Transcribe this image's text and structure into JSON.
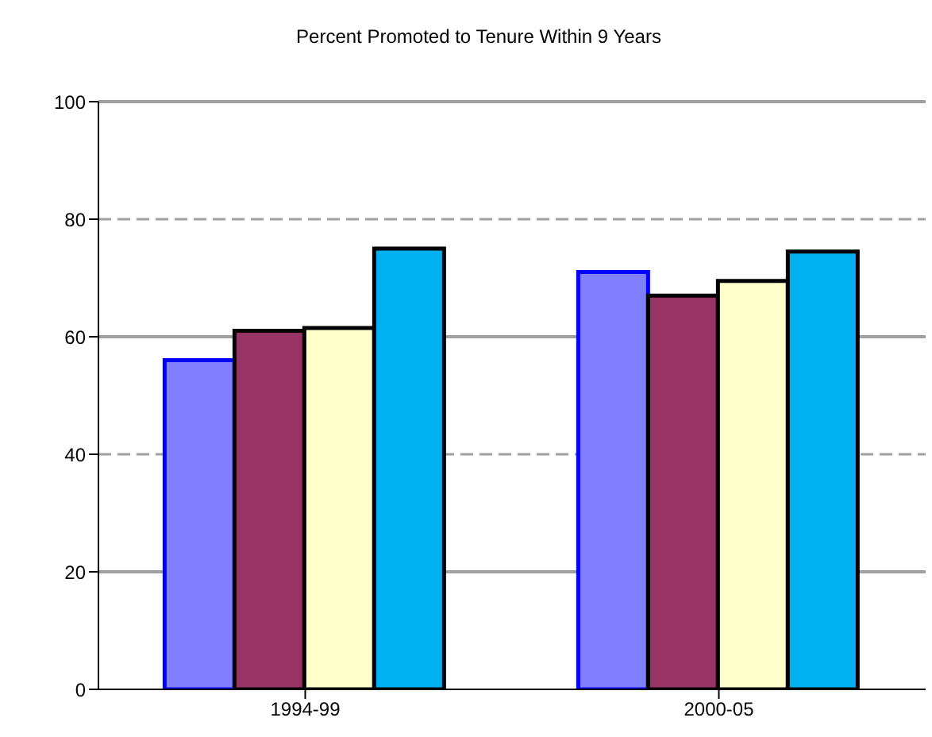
{
  "chart_data": {
    "type": "bar",
    "title": "Percent Promoted to Tenure Within 9 Years",
    "categories": [
      "1994-99",
      "2000-05"
    ],
    "series": [
      {
        "color": "#8080ff",
        "values": [
          56,
          71
        ]
      },
      {
        "color": "#993366",
        "values": [
          61,
          67
        ]
      },
      {
        "color": "#ffffcc",
        "values": [
          61.5,
          69.5
        ]
      },
      {
        "color": "#00b0f0",
        "values": [
          75,
          74.5
        ]
      }
    ],
    "ylim": [
      0,
      100
    ],
    "yticks": [
      0,
      20,
      40,
      60,
      80,
      100
    ],
    "grid": "y"
  }
}
